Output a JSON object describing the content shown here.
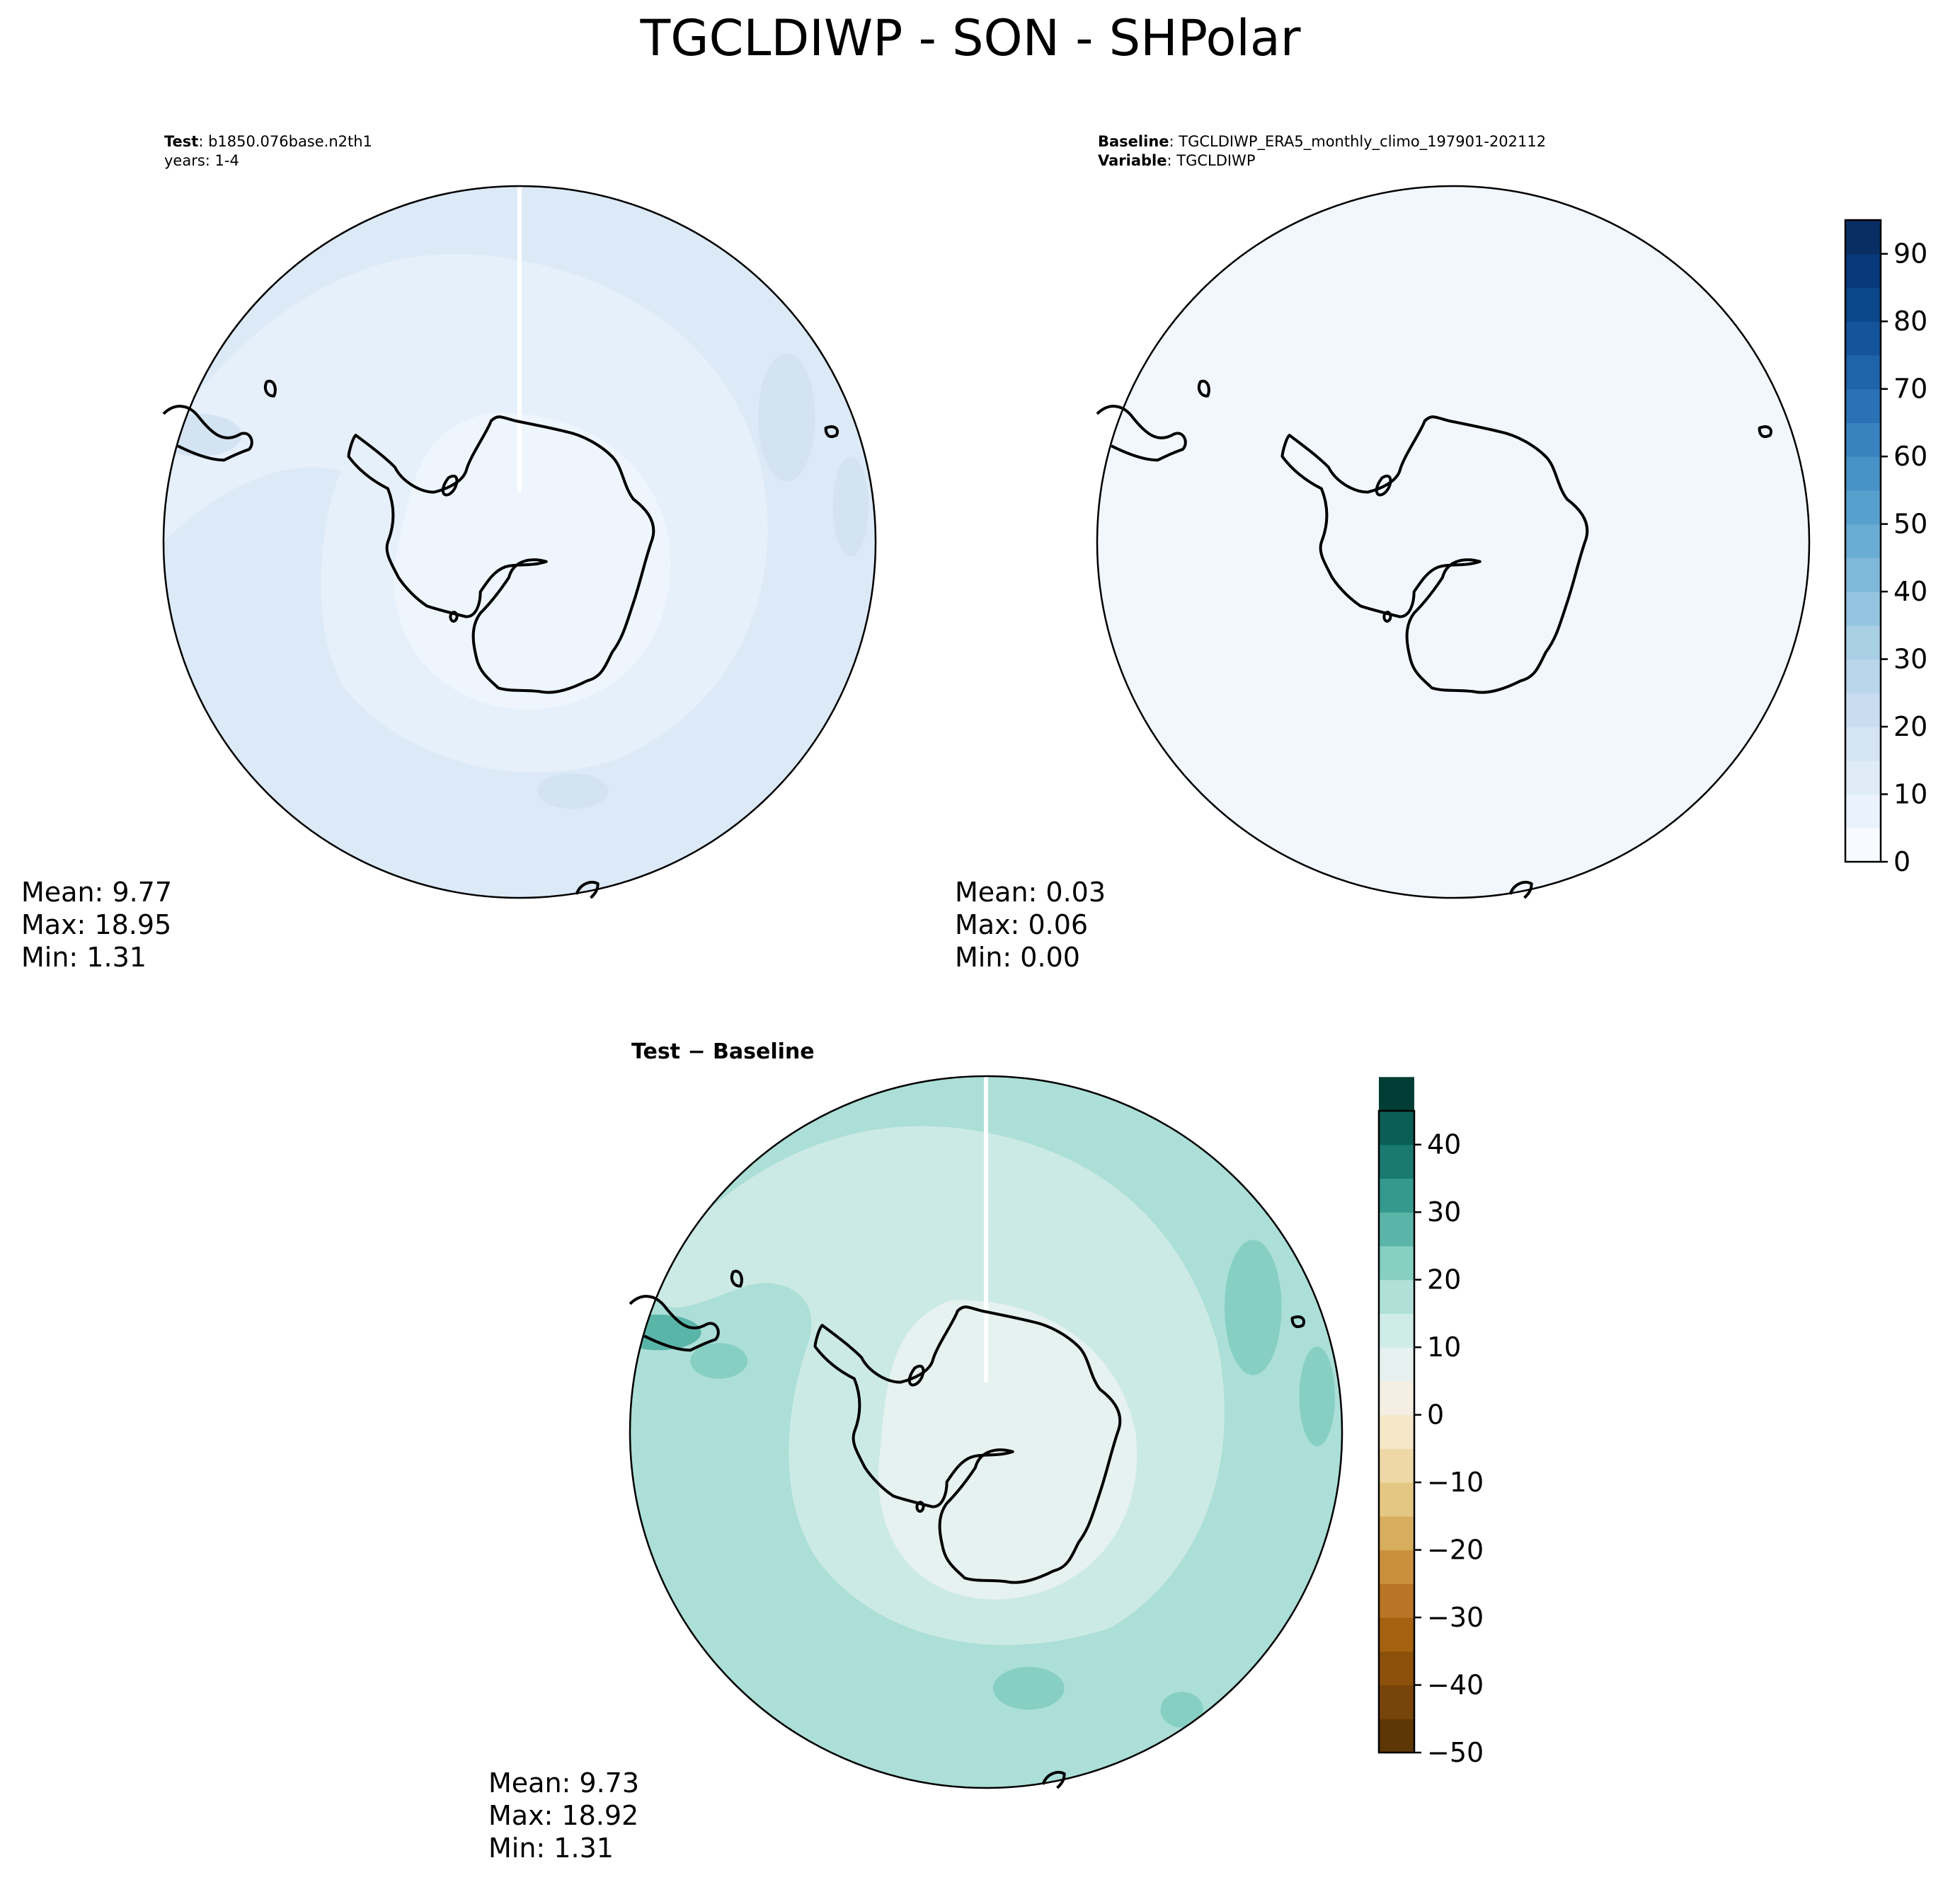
{
  "figure": {
    "title": "TGCLDIWP - SON - SHPolar"
  },
  "panels": {
    "test": {
      "label_bold": "Test",
      "label_rest": ": b1850.076base.n2th1",
      "label_line2": "years: 1-4",
      "stats": {
        "mean": "Mean:  9.77",
        "max": "Max: 18.95",
        "min": "Min:  1.31"
      }
    },
    "baseline": {
      "label_bold": "Baseline",
      "label_rest": ": TGCLDIWP_ERA5_monthly_climo_197901-202112",
      "label2_bold": "Variable",
      "label2_rest": ": TGCLDIWP",
      "stats": {
        "mean": "Mean:  0.03",
        "max": "Max:  0.06",
        "min": "Min:  0.00"
      }
    },
    "diff": {
      "title": "Test − Baseline",
      "stats": {
        "mean": "Mean:  9.73",
        "max": "Max: 18.92",
        "min": "Min:  1.31"
      }
    }
  },
  "colorbars": {
    "abs": {
      "cmap": "Blues",
      "min": 0,
      "max": 95,
      "step": 5,
      "ticks": [
        "0",
        "10",
        "20",
        "30",
        "40",
        "50",
        "60",
        "70",
        "80",
        "90"
      ],
      "colors": [
        "#f7fbff",
        "#eaf3fb",
        "#dfecf7",
        "#d4e4f3",
        "#c9ddf0",
        "#bad6eb",
        "#a9cfe5",
        "#94c4df",
        "#7fb9da",
        "#69add5",
        "#57a0ce",
        "#4792c6",
        "#3882c0",
        "#2a72b5",
        "#1f63a8",
        "#14549a",
        "#0b468b",
        "#08397a",
        "#082e64"
      ]
    },
    "diff": {
      "cmap": "BrBG",
      "min": -50,
      "max": 45,
      "step": 5,
      "ticks": [
        "−50",
        "−40",
        "−30",
        "−20",
        "−10",
        "0",
        "10",
        "20",
        "30",
        "40"
      ],
      "colors": [
        "#5e3707",
        "#774409",
        "#8c510a",
        "#a4610f",
        "#b97426",
        "#ca903c",
        "#d7ad5e",
        "#e5c784",
        "#eed9a6",
        "#f5e8c8",
        "#f4efe2",
        "#e6f1ef",
        "#d0ece7",
        "#b0e0d7",
        "#86cfc1",
        "#5ab5a8",
        "#35998d",
        "#1a7a70",
        "#0a5e55",
        "#003e35"
      ]
    }
  },
  "map_fill": {
    "baseline_color": "#f1f7fd",
    "test_ocean": "#dce9f6",
    "test_band": "#e6f0fa",
    "test_center": "#eef5fc",
    "test_darker": "#d4e3f2",
    "diff_ocean": "#abdfd7",
    "diff_band": "#cceae5",
    "diff_center": "#e6f2f0",
    "diff_darker": "#86cfc2",
    "diff_darkest": "#5ab5a9"
  }
}
